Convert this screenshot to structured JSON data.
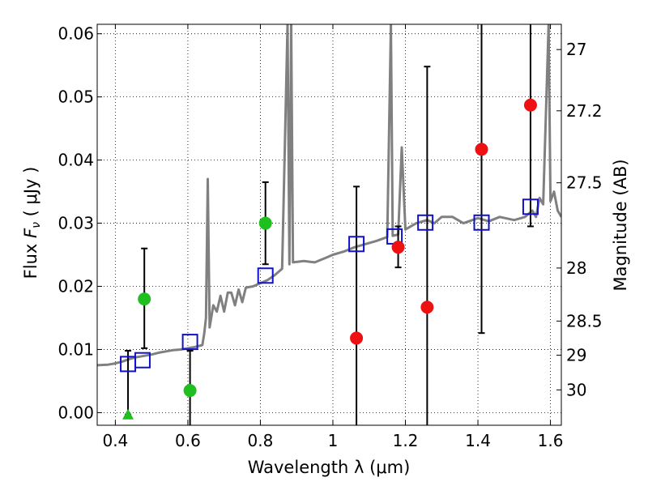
{
  "chart_data": {
    "type": "scatter",
    "xlabel": "Wavelength  λ (μm)",
    "ylabel_prefix": "Flux  ",
    "ylabel_var": "F",
    "ylabel_sub": "ν",
    "ylabel_unit": "  ( μJy )",
    "y2label": "Magnitude (AB)",
    "xlim": [
      0.35,
      1.63
    ],
    "ylim": [
      -0.002,
      0.0615
    ],
    "x_ticks": [
      0.4,
      0.6,
      0.8,
      1.0,
      1.2,
      1.4,
      1.6
    ],
    "x_tick_labels": [
      "0.4",
      "0.6",
      "0.8",
      "1",
      "1.2",
      "1.4",
      "1.6"
    ],
    "y_ticks": [
      0.0,
      0.01,
      0.02,
      0.03,
      0.04,
      0.05,
      0.06
    ],
    "y_tick_labels": [
      "0.00",
      "0.01",
      "0.02",
      "0.03",
      "0.04",
      "0.05",
      "0.06"
    ],
    "y2_ticks": [
      {
        "flux": 0.0575,
        "label": "27"
      },
      {
        "flux": 0.0478,
        "label": "27.2"
      },
      {
        "flux": 0.0364,
        "label": "27.5"
      },
      {
        "flux": 0.0229,
        "label": "28"
      },
      {
        "flux": 0.0145,
        "label": "28.5"
      },
      {
        "flux": 0.0091,
        "label": "29"
      },
      {
        "flux": 0.0036,
        "label": "30"
      }
    ],
    "grid": true,
    "colors": {
      "model": "#808080",
      "green": "#1fbf1f",
      "red": "#ee1111",
      "blue_square": "#1111cc",
      "errorbar": "#000000"
    },
    "series": [
      {
        "name": "model-spectrum",
        "style": "line",
        "color": "#808080",
        "points": [
          [
            0.35,
            0.0075
          ],
          [
            0.38,
            0.0076
          ],
          [
            0.4,
            0.0078
          ],
          [
            0.42,
            0.0081
          ],
          [
            0.44,
            0.0085
          ],
          [
            0.46,
            0.0088
          ],
          [
            0.48,
            0.009
          ],
          [
            0.5,
            0.0092
          ],
          [
            0.52,
            0.0095
          ],
          [
            0.54,
            0.0097
          ],
          [
            0.56,
            0.0099
          ],
          [
            0.58,
            0.01
          ],
          [
            0.6,
            0.0102
          ],
          [
            0.62,
            0.0104
          ],
          [
            0.64,
            0.0107
          ],
          [
            0.645,
            0.0125
          ],
          [
            0.65,
            0.015
          ],
          [
            0.655,
            0.037
          ],
          [
            0.66,
            0.0135
          ],
          [
            0.67,
            0.017
          ],
          [
            0.68,
            0.016
          ],
          [
            0.69,
            0.0185
          ],
          [
            0.7,
            0.016
          ],
          [
            0.71,
            0.019
          ],
          [
            0.72,
            0.019
          ],
          [
            0.73,
            0.017
          ],
          [
            0.74,
            0.0195
          ],
          [
            0.75,
            0.0175
          ],
          [
            0.76,
            0.0198
          ],
          [
            0.78,
            0.02
          ],
          [
            0.8,
            0.0205
          ],
          [
            0.82,
            0.021
          ],
          [
            0.84,
            0.0218
          ],
          [
            0.86,
            0.0228
          ],
          [
            0.875,
            0.0615
          ],
          [
            0.88,
            0.0235
          ],
          [
            0.885,
            0.0615
          ],
          [
            0.89,
            0.0238
          ],
          [
            0.92,
            0.024
          ],
          [
            0.95,
            0.0238
          ],
          [
            0.98,
            0.0245
          ],
          [
            1.0,
            0.025
          ],
          [
            1.03,
            0.0255
          ],
          [
            1.06,
            0.0262
          ],
          [
            1.09,
            0.0267
          ],
          [
            1.12,
            0.0272
          ],
          [
            1.15,
            0.0278
          ],
          [
            1.16,
            0.0615
          ],
          [
            1.165,
            0.028
          ],
          [
            1.18,
            0.0282
          ],
          [
            1.19,
            0.042
          ],
          [
            1.2,
            0.029
          ],
          [
            1.23,
            0.03
          ],
          [
            1.26,
            0.0305
          ],
          [
            1.28,
            0.03
          ],
          [
            1.3,
            0.031
          ],
          [
            1.33,
            0.031
          ],
          [
            1.36,
            0.03
          ],
          [
            1.4,
            0.0308
          ],
          [
            1.43,
            0.0303
          ],
          [
            1.46,
            0.031
          ],
          [
            1.5,
            0.0305
          ],
          [
            1.53,
            0.031
          ],
          [
            1.55,
            0.032
          ],
          [
            1.56,
            0.031
          ],
          [
            1.57,
            0.034
          ],
          [
            1.58,
            0.033
          ],
          [
            1.595,
            0.0615
          ],
          [
            1.6,
            0.0335
          ],
          [
            1.61,
            0.035
          ],
          [
            1.62,
            0.032
          ],
          [
            1.63,
            0.031
          ]
        ]
      },
      {
        "name": "model-photometry",
        "style": "open-square",
        "color": "#1111cc",
        "points": [
          [
            0.435,
            0.0077
          ],
          [
            0.475,
            0.0083
          ],
          [
            0.606,
            0.0112
          ],
          [
            0.814,
            0.0217
          ],
          [
            1.065,
            0.0267
          ],
          [
            1.17,
            0.0279
          ],
          [
            1.255,
            0.0301
          ],
          [
            1.41,
            0.0301
          ],
          [
            1.545,
            0.0326
          ]
        ]
      },
      {
        "name": "observed-green",
        "style": "filled-circle",
        "color": "#1fbf1f",
        "points": [
          {
            "x": 0.48,
            "y": 0.018,
            "ylo": 0.0102,
            "yhi": 0.026
          },
          {
            "x": 0.606,
            "y": 0.0035,
            "ylo": -0.002,
            "yhi": 0.0098
          },
          {
            "x": 0.814,
            "y": 0.03,
            "ylo": 0.0235,
            "yhi": 0.0365
          }
        ]
      },
      {
        "name": "observed-green-upper-limit",
        "style": "triangle",
        "color": "#1fbf1f",
        "points": [
          {
            "x": 0.435,
            "y": -0.0003,
            "ylo": -0.0003,
            "yhi": 0.0098
          }
        ]
      },
      {
        "name": "observed-red",
        "style": "filled-circle",
        "color": "#ee1111",
        "points": [
          {
            "x": 1.065,
            "y": 0.0118,
            "ylo": -0.002,
            "yhi": 0.0358
          },
          {
            "x": 1.18,
            "y": 0.0262,
            "ylo": 0.023,
            "yhi": 0.0295
          },
          {
            "x": 1.26,
            "y": 0.0167,
            "ylo": -0.002,
            "yhi": 0.0548
          },
          {
            "x": 1.41,
            "y": 0.0417,
            "ylo": 0.0126,
            "yhi": 0.0615
          },
          {
            "x": 1.545,
            "y": 0.0487,
            "ylo": 0.0295,
            "yhi": 0.0615
          }
        ]
      }
    ]
  }
}
